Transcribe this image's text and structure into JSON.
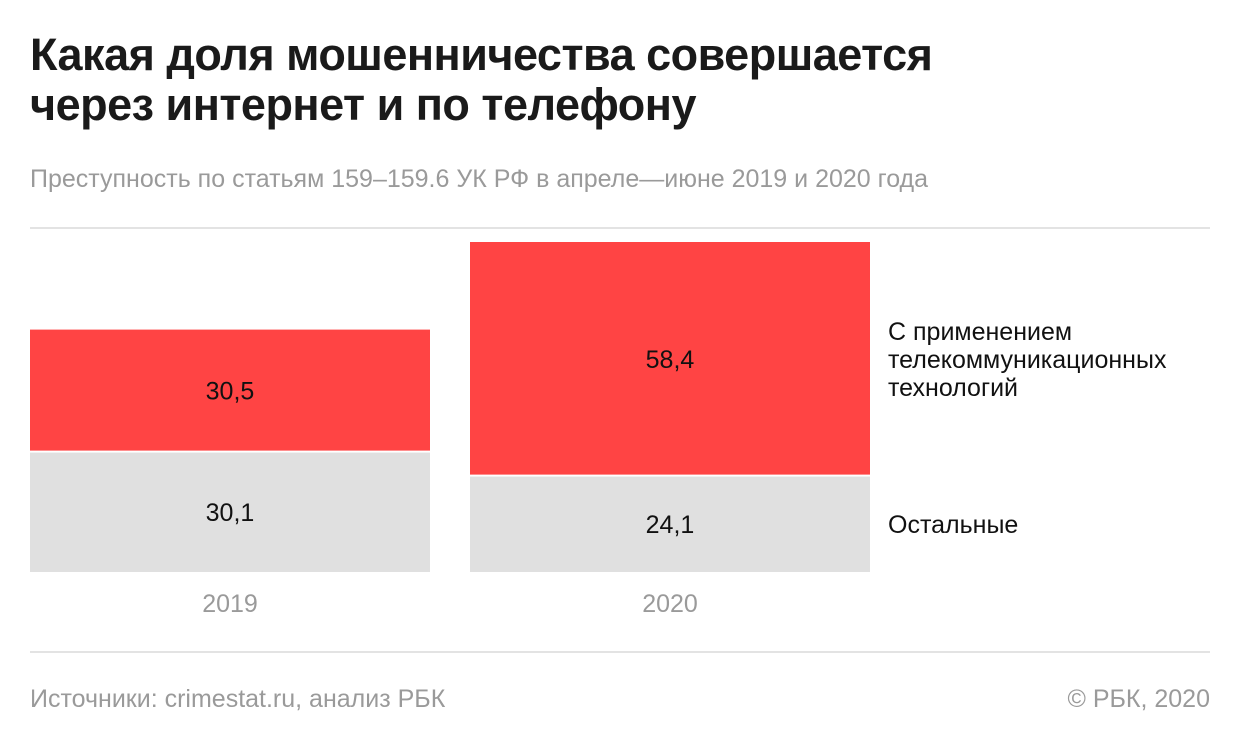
{
  "header": {
    "title_line1": "Какая доля мошенничества совершается",
    "title_line2": "через интернет и по телефону",
    "subtitle": "Преступность по статьям 159–159.6 УК РФ в апреле—июне 2019 и 2020 года"
  },
  "chart_data": {
    "type": "bar",
    "stacked": true,
    "categories": [
      "2019",
      "2020"
    ],
    "series": [
      {
        "name": "Остальные",
        "values": [
          "30,1",
          "24,1"
        ],
        "numeric": [
          30.1,
          24.1
        ],
        "color": "#e0e0e0"
      },
      {
        "name_lines": [
          "С применением",
          "телекоммуникационных",
          "технологий"
        ],
        "values": [
          "30,5",
          "58,4"
        ],
        "numeric": [
          30.5,
          58.4
        ],
        "color": "#ff4444"
      }
    ],
    "ylim": [
      0,
      82.5
    ],
    "grid": false,
    "legend": "right",
    "axis_label_color": "#9a9a9a",
    "value_label_color": "#111111"
  },
  "footer": {
    "source": "Источники: crimestat.ru, анализ РБК",
    "copyright": "© РБК, 2020"
  }
}
